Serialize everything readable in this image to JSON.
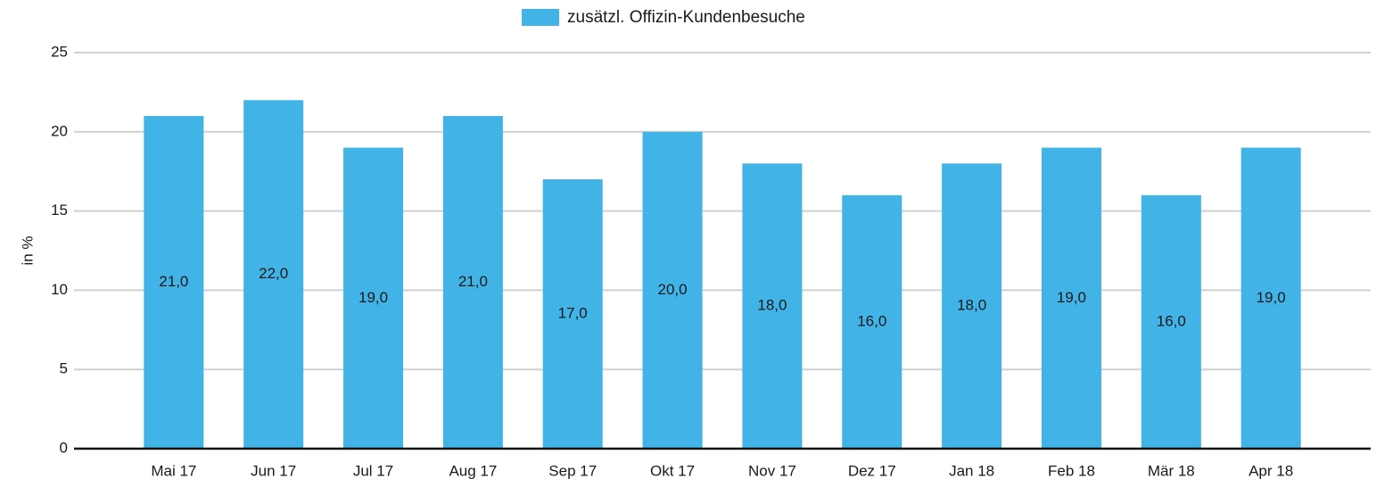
{
  "chart_data": {
    "type": "bar",
    "y_label": "in %",
    "categories": [
      "Mai 17",
      "Jun 17",
      "Jul 17",
      "Aug 17",
      "Sep 17",
      "Okt 17",
      "Nov 17",
      "Dez 17",
      "Jan 18",
      "Feb 18",
      "Mär 18",
      "Apr 18"
    ],
    "series": [
      {
        "name": "zusätzl. Offizin-Kundenbesuche",
        "color": "#41b3e6",
        "values": [
          21,
          22,
          19,
          21,
          17,
          20,
          18,
          16,
          18,
          19,
          16,
          19
        ],
        "value_labels": [
          "21,0",
          "22,0",
          "19,0",
          "21,0",
          "17,0",
          "20,0",
          "18,0",
          "16,0",
          "18,0",
          "19,0",
          "16,0",
          "19,0"
        ]
      }
    ],
    "ylim": [
      0,
      25
    ],
    "yticks": [
      0,
      5,
      10,
      15,
      20,
      25
    ],
    "grid": true,
    "legend": "top"
  }
}
